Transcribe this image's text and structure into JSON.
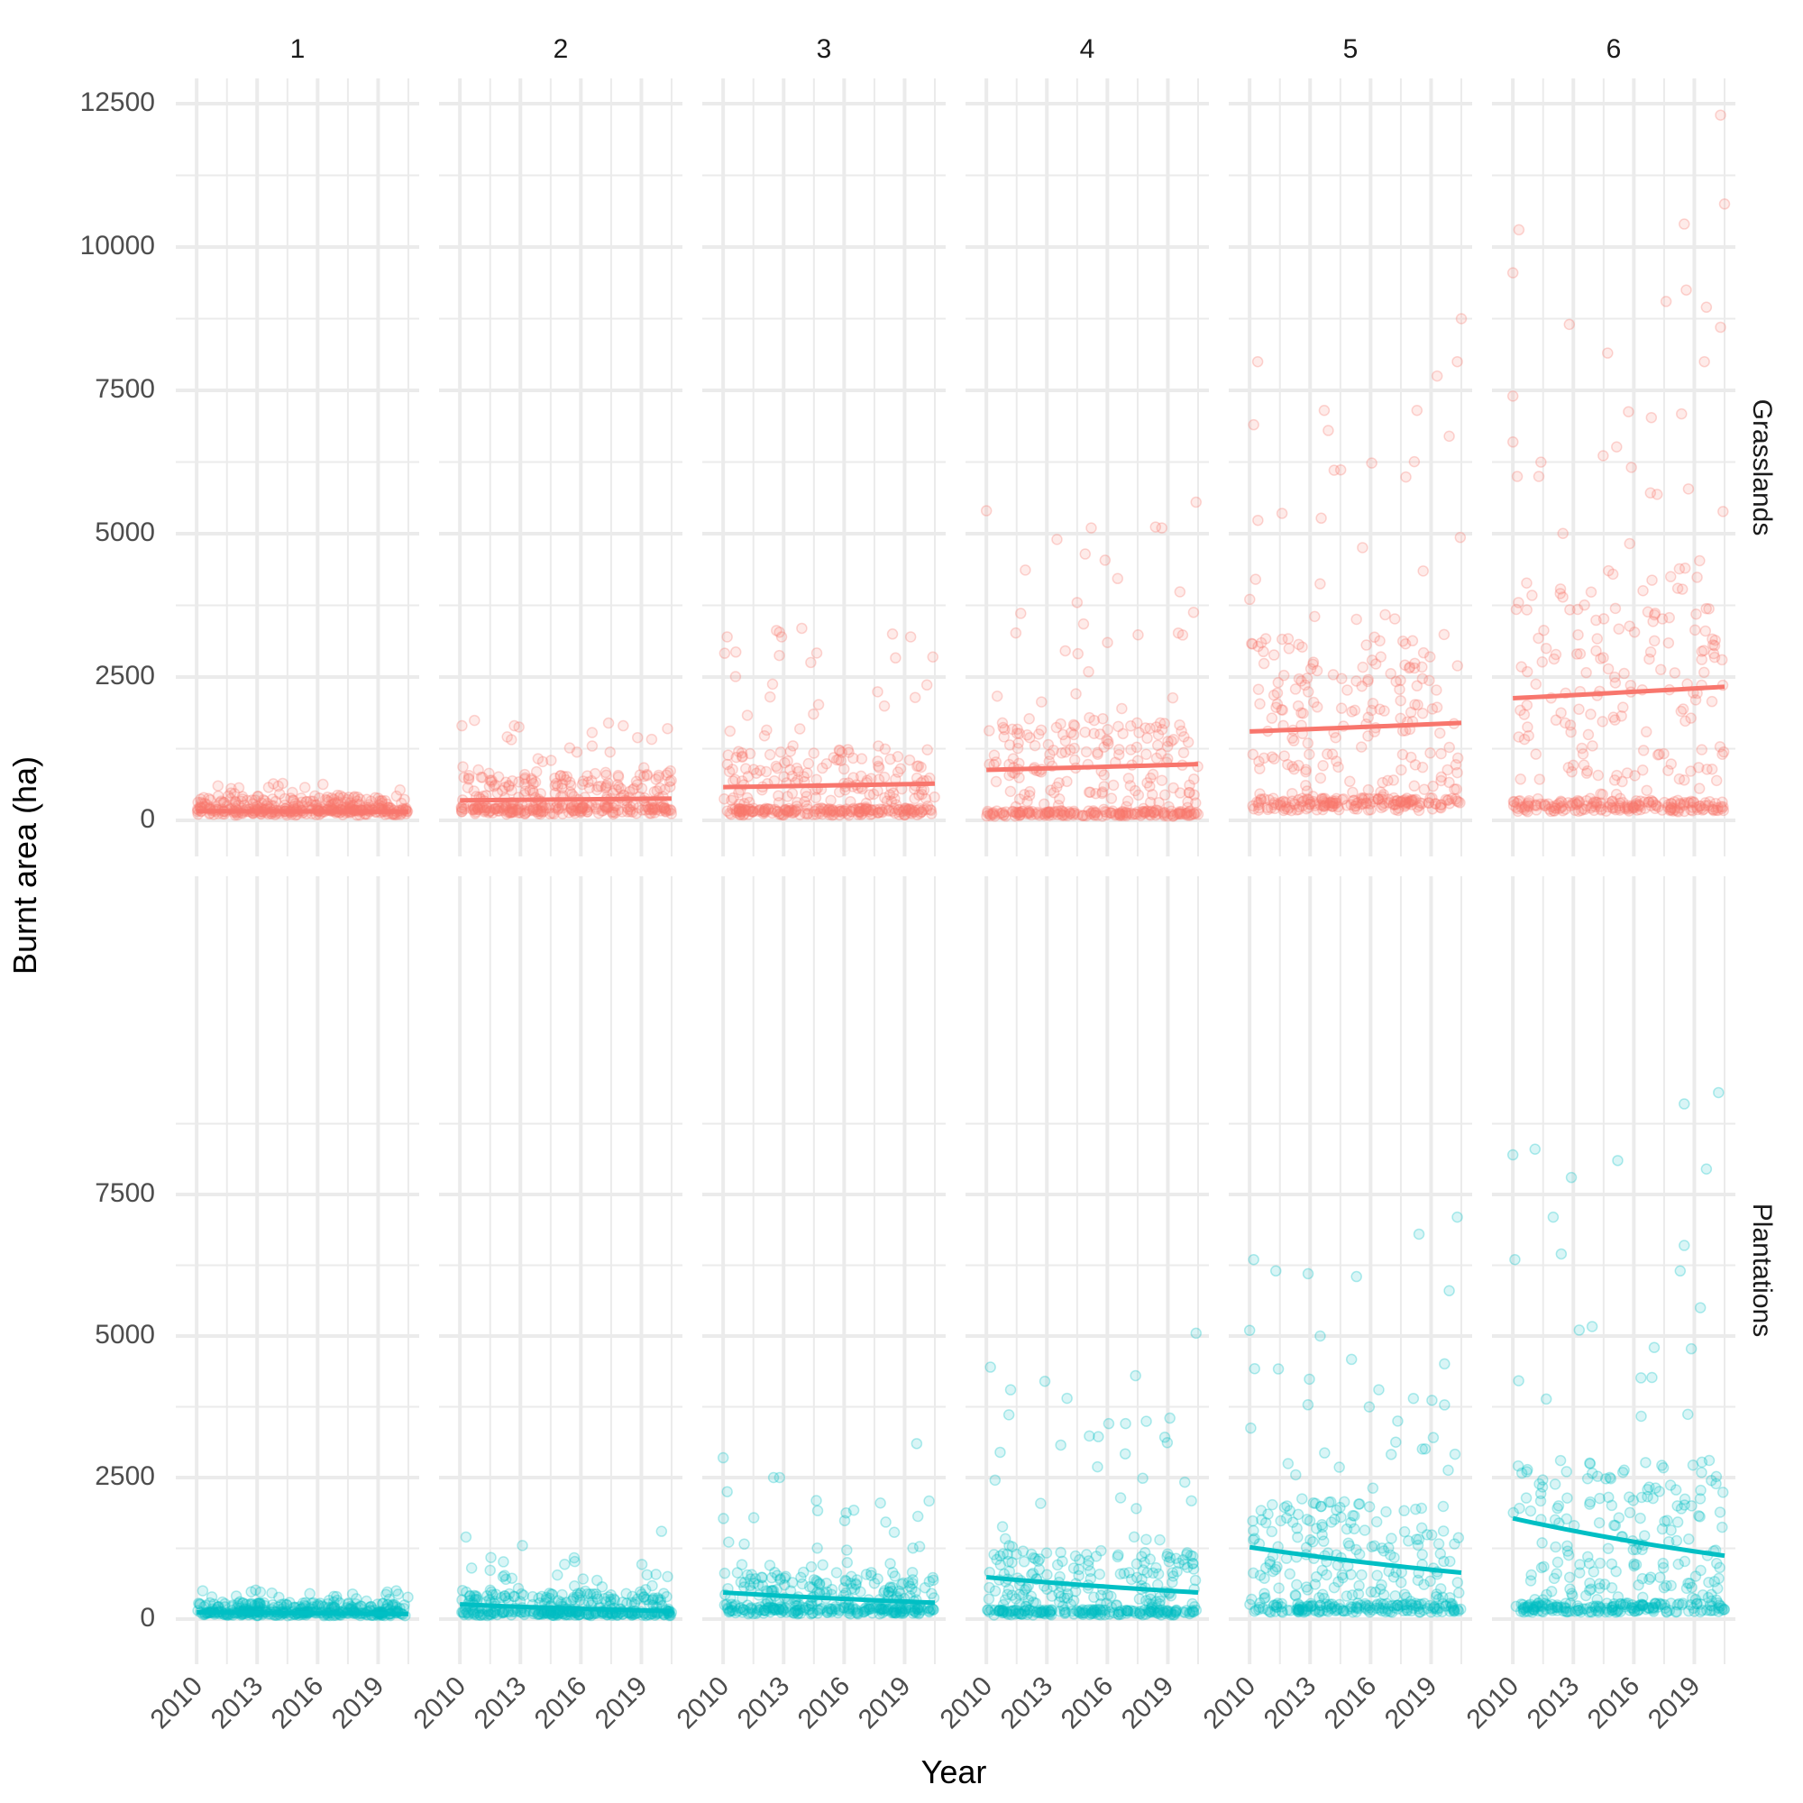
{
  "chart_data": {
    "type": "scatter",
    "facet_columns": [
      "1",
      "2",
      "3",
      "4",
      "5",
      "6"
    ],
    "facet_rows": [
      "Grasslands",
      "Plantations"
    ],
    "xlabel": "Year",
    "ylabel": "Burnt area (ha)",
    "x_ticks": [
      2010,
      2013,
      2016,
      2019
    ],
    "x_range": [
      2009.5,
      2020.5
    ],
    "grid": true,
    "legend": "none",
    "rows": [
      {
        "name": "Grasslands",
        "color": "#F8766D",
        "y_ticks": [
          0,
          2500,
          5000,
          7500,
          10000,
          12500
        ],
        "y_range": [
          -400,
          13000
        ],
        "trend": [
          {
            "facet": "1",
            "y_2010": 160,
            "y_2020": 150
          },
          {
            "facet": "2",
            "y_2010": 350,
            "y_2020": 380
          },
          {
            "facet": "3",
            "y_2010": 580,
            "y_2020": 640
          },
          {
            "facet": "4",
            "y_2010": 880,
            "y_2020": 980
          },
          {
            "facet": "5",
            "y_2010": 1550,
            "y_2020": 1700
          },
          {
            "facet": "6",
            "y_2010": 2130,
            "y_2020": 2330
          }
        ],
        "spread": [
          {
            "facet": "1",
            "base": 150,
            "max_typical": 500,
            "outliers": []
          },
          {
            "facet": "2",
            "base": 180,
            "max_typical": 1600,
            "outliers": [
              [
                2010.1,
                1650
              ],
              [
                2012.7,
                1650
              ],
              [
                2018.1,
                1650
              ],
              [
                2020.3,
                1600
              ]
            ]
          },
          {
            "facet": "3",
            "base": 150,
            "max_typical": 3200,
            "outliers": [
              [
                2010.2,
                3200
              ],
              [
                2012.9,
                3200
              ],
              [
                2013.9,
                3350
              ],
              [
                2018.4,
                3250
              ],
              [
                2019.3,
                3200
              ],
              [
                2020.4,
                2850
              ]
            ]
          },
          {
            "facet": "4",
            "base": 120,
            "max_typical": 5000,
            "outliers": [
              [
                2010.0,
                5400
              ],
              [
                2013.5,
                4900
              ],
              [
                2015.2,
                5100
              ],
              [
                2018.7,
                5100
              ],
              [
                2020.4,
                5550
              ],
              [
                2014.5,
                3800
              ]
            ]
          },
          {
            "facet": "5",
            "base": 280,
            "max_typical": 6000,
            "outliers": [
              [
                2010.4,
                8000
              ],
              [
                2010.2,
                6900
              ],
              [
                2013.7,
                7150
              ],
              [
                2013.9,
                6800
              ],
              [
                2018.3,
                7150
              ],
              [
                2019.3,
                7750
              ],
              [
                2020.5,
                8750
              ],
              [
                2020.3,
                8000
              ],
              [
                2019.9,
                6700
              ]
            ]
          },
          {
            "facet": "6",
            "base": 250,
            "max_typical": 7000,
            "outliers": [
              [
                2010.0,
                9550
              ],
              [
                2010.3,
                10300
              ],
              [
                2012.8,
                8650
              ],
              [
                2014.7,
                8150
              ],
              [
                2017.6,
                9050
              ],
              [
                2018.5,
                10400
              ],
              [
                2018.6,
                9250
              ],
              [
                2019.6,
                8950
              ],
              [
                2020.3,
                12300
              ],
              [
                2020.5,
                10750
              ],
              [
                2020.3,
                8600
              ],
              [
                2019.5,
                8000
              ],
              [
                2010.0,
                7400
              ]
            ]
          }
        ]
      },
      {
        "name": "Plantations",
        "color": "#00BFC4",
        "y_ticks": [
          0,
          2500,
          5000,
          7500
        ],
        "y_range": [
          -500,
          9600
        ],
        "trend": [
          {
            "facet": "1",
            "y_2010": 120,
            "y_2020": 90
          },
          {
            "facet": "2",
            "y_2010": 260,
            "y_2020": 140
          },
          {
            "facet": "3",
            "y_2010": 470,
            "y_2020": 290
          },
          {
            "facet": "4",
            "y_2010": 740,
            "y_2020": 470
          },
          {
            "facet": "5",
            "y_2010": 1270,
            "y_2020": 820
          },
          {
            "facet": "6",
            "y_2010": 1780,
            "y_2020": 1120
          }
        ],
        "spread": [
          {
            "facet": "1",
            "base": 100,
            "max_typical": 450,
            "outliers": [
              [
                2010.3,
                500
              ],
              [
                2019.9,
                500
              ],
              [
                2016.8,
                400
              ]
            ]
          },
          {
            "facet": "2",
            "base": 100,
            "max_typical": 1000,
            "outliers": [
              [
                2010.3,
                1450
              ],
              [
                2013.1,
                1300
              ],
              [
                2020.0,
                1550
              ],
              [
                2020.3,
                750
              ]
            ]
          },
          {
            "facet": "3",
            "base": 150,
            "max_typical": 2000,
            "outliers": [
              [
                2010.0,
                2850
              ],
              [
                2010.2,
                2250
              ],
              [
                2012.5,
                2500
              ],
              [
                2012.8,
                2500
              ],
              [
                2019.6,
                3100
              ],
              [
                2017.8,
                2050
              ]
            ]
          },
          {
            "facet": "4",
            "base": 120,
            "max_typical": 3500,
            "outliers": [
              [
                2010.2,
                4450
              ],
              [
                2011.2,
                4050
              ],
              [
                2012.9,
                4200
              ],
              [
                2014.0,
                3900
              ],
              [
                2017.4,
                4300
              ],
              [
                2020.4,
                5050
              ],
              [
                2019.1,
                3550
              ]
            ]
          },
          {
            "facet": "5",
            "base": 200,
            "max_typical": 4500,
            "outliers": [
              [
                2010.0,
                5100
              ],
              [
                2010.2,
                6350
              ],
              [
                2011.3,
                6150
              ],
              [
                2012.9,
                6100
              ],
              [
                2015.3,
                6050
              ],
              [
                2018.4,
                6800
              ],
              [
                2019.9,
                5800
              ],
              [
                2020.3,
                7100
              ],
              [
                2013.5,
                5000
              ]
            ]
          },
          {
            "facet": "6",
            "base": 200,
            "max_typical": 5000,
            "outliers": [
              [
                2010.0,
                8200
              ],
              [
                2011.1,
                8300
              ],
              [
                2012.0,
                7100
              ],
              [
                2012.9,
                7800
              ],
              [
                2012.4,
                6450
              ],
              [
                2015.2,
                8100
              ],
              [
                2018.5,
                9100
              ],
              [
                2019.6,
                7950
              ],
              [
                2020.2,
                9300
              ],
              [
                2018.5,
                6600
              ],
              [
                2018.3,
                6150
              ],
              [
                2019.3,
                5500
              ],
              [
                2010.1,
                6350
              ]
            ]
          }
        ]
      }
    ]
  }
}
